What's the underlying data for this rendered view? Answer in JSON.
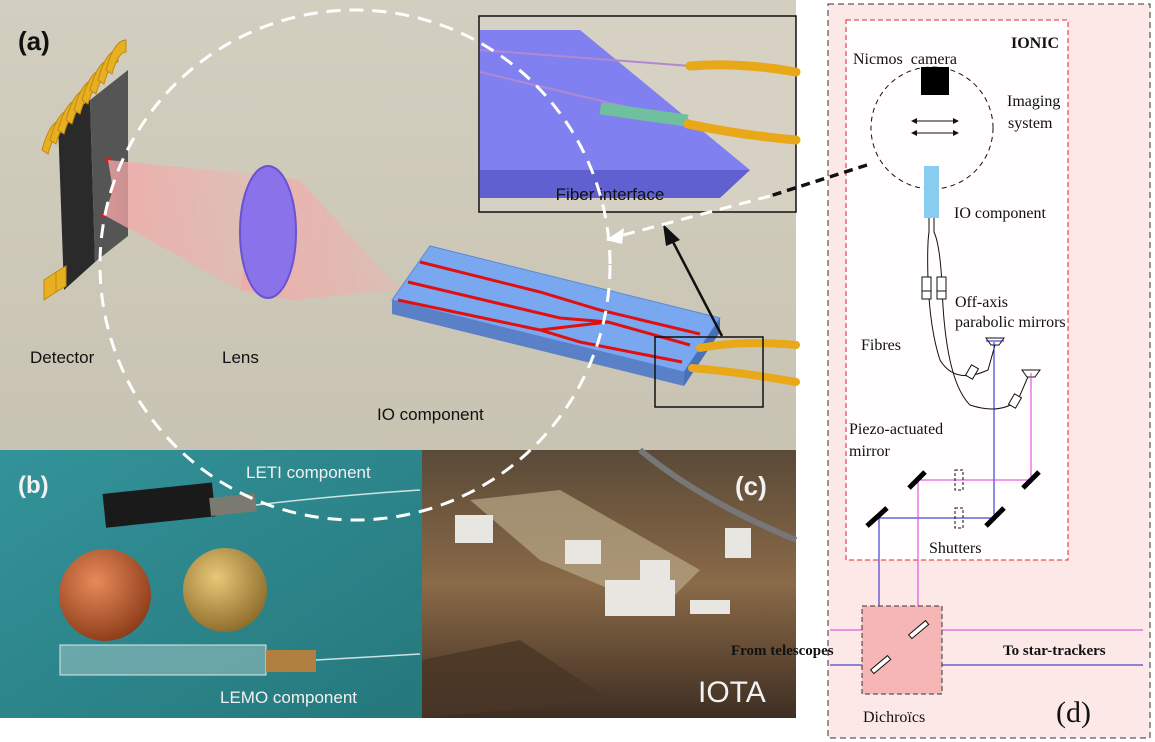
{
  "panel_a": {
    "label": "(a)",
    "detector": "Detector",
    "lens": "Lens",
    "io_component": "IO component",
    "fiber_interface": "Fiber interface"
  },
  "panel_b": {
    "label": "(b)",
    "leti": "LETI component",
    "lemo": "LEMO component"
  },
  "panel_c": {
    "label": "(c)",
    "iota": "IOTA"
  },
  "panel_d": {
    "label": "(d)",
    "ionic": "IONIC",
    "nicmos": "Nicmos  camera",
    "imaging_1": "Imaging",
    "imaging_2": "system",
    "io_component": "IO component",
    "off_axis_1": "Off-axis",
    "off_axis_2": "parabolic mirrors",
    "fibres": "Fibres",
    "piezo_1": "Piezo-actuated",
    "piezo_2": "mirror",
    "shutters": "Shutters",
    "from_telescopes": "From telescopes",
    "to_star_trackers": "To star-trackers",
    "dichroics": "Dichroïcs"
  },
  "colors": {
    "panel_a_bg": "#cdc8b8",
    "panel_b_bg": "#2f8c8e",
    "panel_d_bg": "#fde8e8",
    "red_dashed": "#e8242a",
    "magenta_beam": "#d83ad8",
    "blue_beam": "#1c1cc8"
  }
}
